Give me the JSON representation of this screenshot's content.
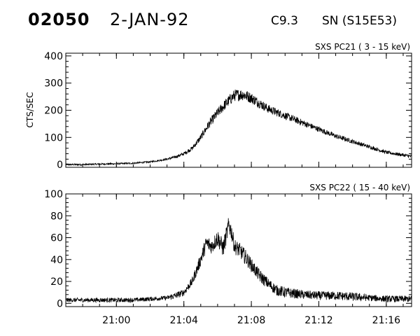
{
  "header": {
    "event_id": "02050",
    "date": "2-JAN-92",
    "flare_class": "C9.3",
    "location": "SN (S15E53)"
  },
  "chart_data": [
    {
      "type": "line",
      "title": "SXS PC21  (  3 - 15 keV)",
      "ylabel": "CTS/SEC",
      "xlabel": "",
      "ylim": [
        -10,
        410
      ],
      "yticks": [
        0,
        100,
        200,
        300,
        400
      ],
      "ytick_labels": [
        "0",
        "100",
        "200",
        "300",
        "400"
      ],
      "xlim": [
        "20:57:00",
        "21:17:30"
      ],
      "xticks": [
        "21:00",
        "21:04",
        "21:08",
        "21:12",
        "21:16"
      ],
      "grid": false,
      "series": [
        {
          "x": [
            "20:57:00",
            "20:58:00",
            "20:59:00",
            "21:00:00",
            "21:01:00",
            "21:02:00",
            "21:02:30",
            "21:03:00",
            "21:03:30",
            "21:04:00",
            "21:04:30",
            "21:05:00",
            "21:05:30",
            "21:06:00",
            "21:06:30",
            "21:07:00",
            "21:07:30",
            "21:08:00",
            "21:08:30",
            "21:09:00",
            "21:10:00",
            "21:11:00",
            "21:12:00",
            "21:13:00",
            "21:14:00",
            "21:15:00",
            "21:16:00",
            "21:17:00",
            "21:17:30"
          ],
          "values": [
            0,
            0,
            2,
            3,
            5,
            10,
            15,
            20,
            28,
            40,
            60,
            100,
            150,
            190,
            225,
            255,
            258,
            245,
            225,
            205,
            180,
            155,
            130,
            105,
            85,
            65,
            45,
            35,
            30
          ],
          "noise": [
            3,
            3,
            3,
            3,
            3,
            3,
            3,
            4,
            5,
            6,
            8,
            12,
            16,
            18,
            20,
            22,
            22,
            20,
            18,
            16,
            14,
            12,
            10,
            9,
            8,
            7,
            6,
            6,
            6
          ]
        }
      ]
    },
    {
      "type": "line",
      "title": "SXS PC22  ( 15 - 40 keV)",
      "ylabel": "",
      "xlabel": "",
      "ylim": [
        -3,
        100
      ],
      "yticks": [
        0,
        20,
        40,
        60,
        80,
        100
      ],
      "ytick_labels": [
        "0",
        "20",
        "40",
        "60",
        "80",
        "100"
      ],
      "xlim": [
        "20:57:00",
        "21:17:30"
      ],
      "xticks": [
        "21:00",
        "21:04",
        "21:08",
        "21:12",
        "21:16"
      ],
      "xtick_labels": [
        "21:00",
        "21:04",
        "21:08",
        "21:12",
        "21:16"
      ],
      "grid": false,
      "series": [
        {
          "x": [
            "20:57:00",
            "20:58:00",
            "20:59:00",
            "21:00:00",
            "21:01:00",
            "21:02:00",
            "21:03:00",
            "21:03:30",
            "21:04:00",
            "21:04:30",
            "21:05:00",
            "21:05:20",
            "21:05:40",
            "21:06:00",
            "21:06:20",
            "21:06:40",
            "21:06:50",
            "21:07:00",
            "21:07:20",
            "21:07:40",
            "21:08:00",
            "21:08:30",
            "21:09:00",
            "21:09:30",
            "21:10:00",
            "21:11:00",
            "21:12:00",
            "21:13:00",
            "21:14:00",
            "21:15:00",
            "21:16:00",
            "21:17:00",
            "21:17:30"
          ],
          "values": [
            3,
            3,
            3,
            3,
            3,
            4,
            5,
            7,
            10,
            20,
            40,
            55,
            52,
            60,
            50,
            72,
            65,
            52,
            48,
            42,
            35,
            25,
            18,
            12,
            10,
            8,
            7,
            7,
            6,
            5,
            4,
            4,
            4
          ],
          "noise": [
            2,
            2,
            2,
            2,
            2,
            2,
            2,
            3,
            3,
            4,
            6,
            7,
            7,
            8,
            8,
            8,
            8,
            7,
            7,
            7,
            6,
            6,
            5,
            5,
            5,
            4,
            4,
            4,
            4,
            3,
            3,
            3,
            3
          ]
        }
      ]
    }
  ]
}
